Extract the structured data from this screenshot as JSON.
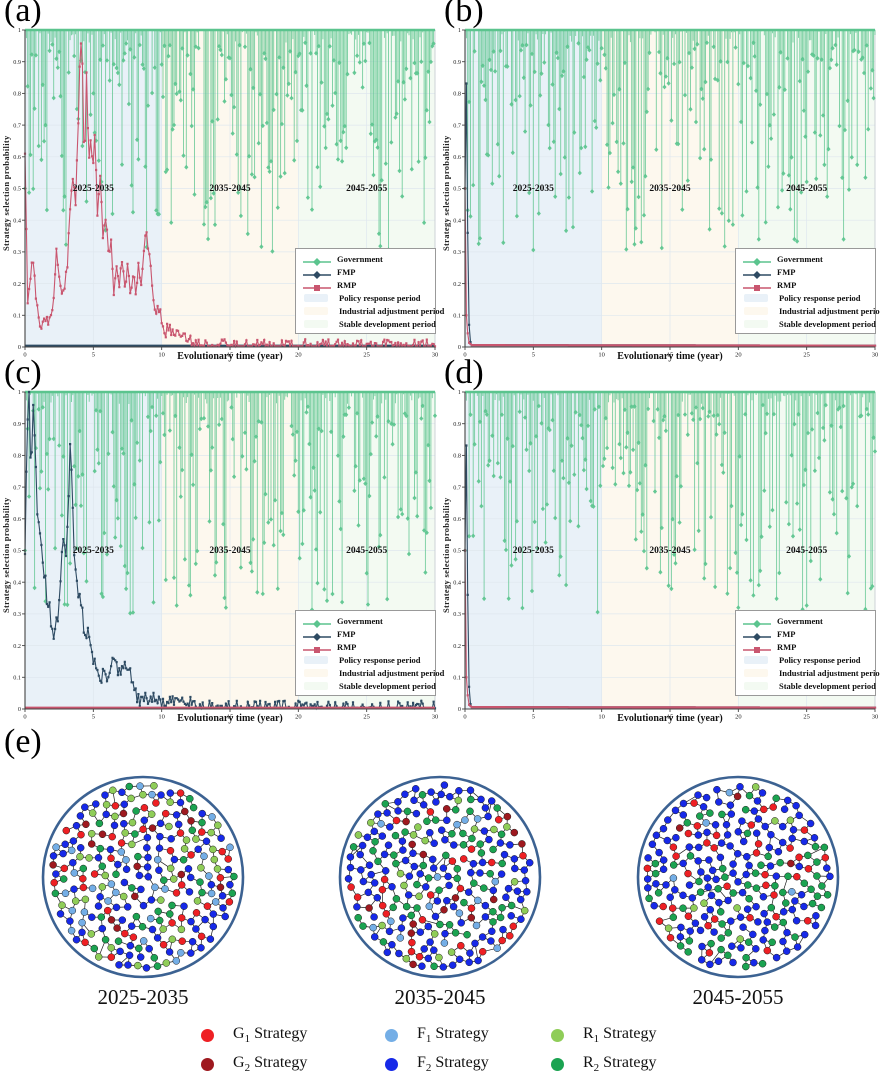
{
  "figure": {
    "panel_labels": [
      "(a)",
      "(b)",
      "(c)",
      "(d)",
      "(e)"
    ]
  },
  "axes": {
    "ylabel": "Strategy selection probability",
    "xlabel": "Evolutionary time (year)",
    "xlim": [
      0,
      30
    ],
    "ylim": [
      0,
      1
    ],
    "xticks": [
      0,
      5,
      10,
      15,
      20,
      25,
      30
    ],
    "yticks": [
      0,
      0.1,
      0.2,
      0.3,
      0.4,
      0.5,
      0.6,
      0.7,
      0.8,
      0.9,
      1
    ],
    "xtick_labels": [
      "0",
      "5",
      "10",
      "15",
      "20",
      "25",
      "30"
    ],
    "ytick_labels": [
      "0",
      "0.1",
      "0.2",
      "0.3",
      "0.4",
      "0.5",
      "0.6",
      "0.7",
      "0.8",
      "0.9",
      "1"
    ],
    "grid": true
  },
  "periods": [
    {
      "label": "2025-2035",
      "range": [
        0,
        10
      ],
      "fill": "#e9f1f8",
      "legend": "Policy response period"
    },
    {
      "label": "2035-2045",
      "range": [
        10,
        20
      ],
      "fill": "#fdf8ee",
      "legend": "Industrial adjustment period"
    },
    {
      "label": "2045-2055",
      "range": [
        20,
        30
      ],
      "fill": "#f3faf2",
      "legend": "Stable development period"
    }
  ],
  "plot_legend": {
    "series": [
      {
        "name": "Government",
        "color": "#5bc48e",
        "marker": "diamond"
      },
      {
        "name": "FMP",
        "color": "#2e4b63",
        "marker": "diamond"
      },
      {
        "name": "RMP",
        "color": "#c9566f",
        "marker": "square"
      }
    ],
    "periods": [
      {
        "name": "Policy response period",
        "color": "#e9f1f8"
      },
      {
        "name": "Industrial adjustment period",
        "color": "#fdf8ee"
      },
      {
        "name": "Stable development period",
        "color": "#f3faf2"
      }
    ]
  },
  "chart_data": [
    {
      "panel": "a",
      "type": "stem+line",
      "government": {
        "kind": "stem_random",
        "seed": 3,
        "count": 301,
        "shape": 2.3,
        "max_drop": 0.7,
        "start_drop": 0.5
      },
      "fmp": {
        "kind": "flat_zero"
      },
      "rmp": {
        "kind": "anchors",
        "seed": 21,
        "noise": 0.02,
        "points": [
          [
            0,
            0.62
          ],
          [
            0.2,
            0.15
          ],
          [
            0.4,
            0.22
          ],
          [
            0.55,
            0.3
          ],
          [
            0.7,
            0.21
          ],
          [
            0.9,
            0.12
          ],
          [
            1.1,
            0.08
          ],
          [
            1.3,
            0.065
          ],
          [
            1.5,
            0.09
          ],
          [
            1.7,
            0.065
          ],
          [
            1.9,
            0.11
          ],
          [
            2.1,
            0.16
          ],
          [
            2.3,
            0.3
          ],
          [
            2.5,
            0.22
          ],
          [
            2.7,
            0.16
          ],
          [
            2.9,
            0.2
          ],
          [
            3.1,
            0.26
          ],
          [
            3.3,
            0.45
          ],
          [
            3.5,
            0.55
          ],
          [
            3.7,
            0.45
          ],
          [
            3.9,
            0.7
          ],
          [
            4.05,
            0.97
          ],
          [
            4.2,
            0.9
          ],
          [
            4.35,
            0.52
          ],
          [
            4.5,
            0.88
          ],
          [
            4.65,
            0.6
          ],
          [
            4.8,
            0.65
          ],
          [
            4.95,
            0.55
          ],
          [
            5.1,
            0.68
          ],
          [
            5.3,
            0.4
          ],
          [
            5.5,
            0.55
          ],
          [
            5.7,
            0.35
          ],
          [
            5.9,
            0.42
          ],
          [
            6.1,
            0.3
          ],
          [
            6.3,
            0.33
          ],
          [
            6.5,
            0.18
          ],
          [
            6.7,
            0.25
          ],
          [
            6.9,
            0.2
          ],
          [
            7.1,
            0.26
          ],
          [
            7.3,
            0.2
          ],
          [
            7.5,
            0.25
          ],
          [
            7.7,
            0.18
          ],
          [
            7.9,
            0.23
          ],
          [
            8.1,
            0.18
          ],
          [
            8.3,
            0.26
          ],
          [
            8.5,
            0.2
          ],
          [
            8.7,
            0.32
          ],
          [
            8.9,
            0.35
          ],
          [
            9.1,
            0.28
          ],
          [
            9.3,
            0.2
          ],
          [
            9.5,
            0.1
          ],
          [
            9.7,
            0.13
          ],
          [
            9.9,
            0.1
          ],
          [
            10.1,
            0.06
          ],
          [
            10.3,
            0.05
          ],
          [
            10.6,
            0.06
          ],
          [
            10.9,
            0.04
          ],
          [
            11.2,
            0.05
          ],
          [
            11.5,
            0.05
          ],
          [
            11.8,
            0.03
          ],
          [
            12.1,
            0.02
          ],
          [
            12.5,
            0.015
          ],
          [
            13,
            0.01
          ],
          [
            14,
            0.006
          ],
          [
            16,
            0.004
          ],
          [
            30,
            0.004
          ]
        ]
      }
    },
    {
      "panel": "b",
      "type": "stem+line",
      "government": {
        "kind": "stem_random",
        "seed": 7,
        "count": 301,
        "shape": 2.3,
        "max_drop": 0.7,
        "start_drop": 0.5
      },
      "fmp": {
        "kind": "anchors",
        "seed": 5,
        "noise": 0,
        "points": [
          [
            0,
            0.5
          ],
          [
            0.07,
            0.97
          ],
          [
            0.15,
            0.6
          ],
          [
            0.25,
            0.12
          ],
          [
            0.35,
            0.02
          ],
          [
            0.5,
            0.006
          ],
          [
            30,
            0.004
          ]
        ]
      },
      "rmp": {
        "kind": "anchors",
        "seed": 6,
        "noise": 0,
        "points": [
          [
            0,
            0.5
          ],
          [
            0.1,
            0.1
          ],
          [
            0.25,
            0.015
          ],
          [
            0.5,
            0.006
          ],
          [
            30,
            0.004
          ]
        ]
      }
    },
    {
      "panel": "c",
      "type": "stem+line",
      "government": {
        "kind": "stem_random",
        "seed": 13,
        "count": 301,
        "shape": 2.3,
        "max_drop": 0.7,
        "start_drop": 0.5
      },
      "fmp": {
        "kind": "anchors",
        "seed": 31,
        "noise": 0.022,
        "points": [
          [
            0,
            0.5
          ],
          [
            0.15,
            0.9
          ],
          [
            0.3,
            1.0
          ],
          [
            0.45,
            0.72
          ],
          [
            0.6,
            0.95
          ],
          [
            0.75,
            0.85
          ],
          [
            0.9,
            0.62
          ],
          [
            1.05,
            0.55
          ],
          [
            1.2,
            0.5
          ],
          [
            1.35,
            0.45
          ],
          [
            1.5,
            0.4
          ],
          [
            1.65,
            0.3
          ],
          [
            1.8,
            0.33
          ],
          [
            1.95,
            0.25
          ],
          [
            2.1,
            0.2
          ],
          [
            2.25,
            0.3
          ],
          [
            2.4,
            0.27
          ],
          [
            2.55,
            0.35
          ],
          [
            2.7,
            0.5
          ],
          [
            2.85,
            0.55
          ],
          [
            3.0,
            0.48
          ],
          [
            3.15,
            0.6
          ],
          [
            3.3,
            0.85
          ],
          [
            3.45,
            0.72
          ],
          [
            3.6,
            0.5
          ],
          [
            3.75,
            0.4
          ],
          [
            3.9,
            0.37
          ],
          [
            4.05,
            0.33
          ],
          [
            4.2,
            0.3
          ],
          [
            4.4,
            0.22
          ],
          [
            4.6,
            0.26
          ],
          [
            4.8,
            0.2
          ],
          [
            5.0,
            0.16
          ],
          [
            5.2,
            0.13
          ],
          [
            5.4,
            0.1
          ],
          [
            5.6,
            0.09
          ],
          [
            5.8,
            0.12
          ],
          [
            6.0,
            0.1
          ],
          [
            6.2,
            0.13
          ],
          [
            6.4,
            0.16
          ],
          [
            6.6,
            0.14
          ],
          [
            6.8,
            0.12
          ],
          [
            7.0,
            0.1
          ],
          [
            7.2,
            0.14
          ],
          [
            7.4,
            0.12
          ],
          [
            7.6,
            0.13
          ],
          [
            7.8,
            0.1
          ],
          [
            8.0,
            0.06
          ],
          [
            8.2,
            0.03
          ],
          [
            8.5,
            0.025
          ],
          [
            8.8,
            0.03
          ],
          [
            9.1,
            0.035
          ],
          [
            9.4,
            0.03
          ],
          [
            9.7,
            0.025
          ],
          [
            10.0,
            0.02
          ],
          [
            10.4,
            0.015
          ],
          [
            10.8,
            0.02
          ],
          [
            11.2,
            0.03
          ],
          [
            11.6,
            0.035
          ],
          [
            12.0,
            0.03
          ],
          [
            12.4,
            0.015
          ],
          [
            12.8,
            0.008
          ],
          [
            13.5,
            0.005
          ],
          [
            15,
            0.004
          ],
          [
            30,
            0.004
          ]
        ]
      },
      "rmp": {
        "kind": "flat_zero"
      }
    },
    {
      "panel": "d",
      "type": "stem+line",
      "government": {
        "kind": "stem_random",
        "seed": 19,
        "count": 301,
        "shape": 2.3,
        "max_drop": 0.7,
        "start_drop": 0.5
      },
      "fmp": {
        "kind": "anchors",
        "seed": 8,
        "noise": 0,
        "points": [
          [
            0,
            0.5
          ],
          [
            0.07,
            0.97
          ],
          [
            0.15,
            0.6
          ],
          [
            0.25,
            0.12
          ],
          [
            0.35,
            0.02
          ],
          [
            0.5,
            0.006
          ],
          [
            30,
            0.004
          ]
        ]
      },
      "rmp": {
        "kind": "anchors",
        "seed": 9,
        "noise": 0,
        "points": [
          [
            0,
            0.5
          ],
          [
            0.1,
            0.1
          ],
          [
            0.25,
            0.015
          ],
          [
            0.5,
            0.006
          ],
          [
            30,
            0.004
          ]
        ]
      }
    },
    {
      "panel": "e",
      "type": "network",
      "circles": [
        {
          "period": "2025-2035",
          "seed": 101,
          "node_count": 300,
          "weights": {
            "G1": 0.13,
            "G2": 0.07,
            "F1": 0.12,
            "F2": 0.36,
            "R1": 0.17,
            "R2": 0.15
          }
        },
        {
          "period": "2035-2045",
          "seed": 202,
          "node_count": 300,
          "weights": {
            "G1": 0.12,
            "G2": 0.06,
            "F1": 0.08,
            "F2": 0.45,
            "R1": 0.09,
            "R2": 0.2
          }
        },
        {
          "period": "2045-2055",
          "seed": 303,
          "node_count": 300,
          "weights": {
            "G1": 0.15,
            "G2": 0.02,
            "F1": 0.02,
            "F2": 0.52,
            "R1": 0.04,
            "R2": 0.25
          }
        }
      ]
    }
  ],
  "network_legend": {
    "items": [
      {
        "id": "G1",
        "sym": "G",
        "sub": "1",
        "text": "Strategy",
        "color": "#ee2024"
      },
      {
        "id": "G2",
        "sym": "G",
        "sub": "2",
        "text": "Strategy",
        "color": "#9e191f"
      },
      {
        "id": "F1",
        "sym": "F",
        "sub": "1",
        "text": "Strategy",
        "color": "#74aee6"
      },
      {
        "id": "F2",
        "sym": "F",
        "sub": "2",
        "text": "Strategy",
        "color": "#1729e8"
      },
      {
        "id": "R1",
        "sym": "R",
        "sub": "1",
        "text": "Strategy",
        "color": "#8fcd58"
      },
      {
        "id": "R2",
        "sym": "R",
        "sub": "2",
        "text": "Strategy",
        "color": "#1ba351"
      }
    ]
  },
  "style_colors": {
    "government": "#5bc48e",
    "fmp": "#2e4b63",
    "rmp": "#c9566f",
    "grid": "#dfe7ee",
    "axis": "#444444",
    "frame": "#c2c8cd",
    "network_circle_border": "#3c6292",
    "network_edge": "#1c1c1c"
  }
}
